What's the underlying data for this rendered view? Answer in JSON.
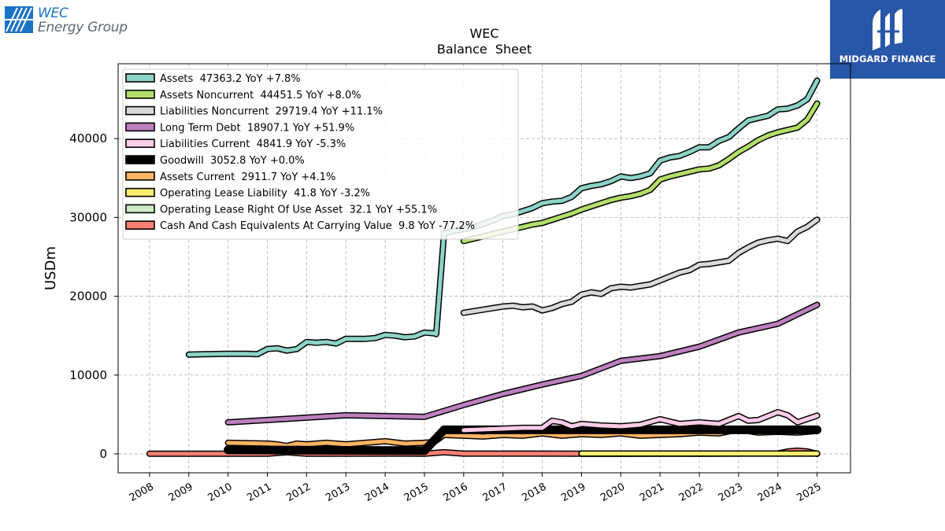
{
  "brand": {
    "left_logo_line1": "WEC",
    "left_logo_line2": "Energy Group",
    "right_logo_name": "MIDGARD FINANCE"
  },
  "chart_data": {
    "type": "line",
    "title": "WEC",
    "subtitle": "Balance  Sheet",
    "xlabel": "",
    "ylabel": "USDm",
    "xlim": [
      2007.2,
      2025.85
    ],
    "ylim": [
      -2400,
      49500
    ],
    "y_ticks": [
      0,
      10000,
      20000,
      30000,
      40000
    ],
    "x_ticks": [
      2008,
      2009,
      2010,
      2011,
      2012,
      2013,
      2014,
      2015,
      2016,
      2017,
      2018,
      2019,
      2020,
      2021,
      2022,
      2023,
      2024,
      2025
    ],
    "grid": true,
    "legend_position": "top-left",
    "series": [
      {
        "name": "Assets",
        "legend": "Assets  47363.2 YoY +7.8%",
        "color": "#8dd3c7",
        "x": [
          2009,
          2010,
          2010.5,
          2010.75,
          2011,
          2011.25,
          2011.5,
          2011.75,
          2012,
          2012.25,
          2012.5,
          2012.75,
          2013,
          2013.25,
          2013.5,
          2013.75,
          2014,
          2014.25,
          2014.5,
          2014.75,
          2015,
          2015.25,
          2015.3,
          2015.5,
          2015.75,
          2016,
          2016.25,
          2016.5,
          2016.75,
          2017,
          2017.25,
          2017.5,
          2017.75,
          2018,
          2018.25,
          2018.5,
          2018.75,
          2019,
          2019.25,
          2019.5,
          2019.75,
          2020,
          2020.25,
          2020.5,
          2020.75,
          2021,
          2021.25,
          2021.5,
          2021.75,
          2022,
          2022.25,
          2022.5,
          2022.75,
          2023,
          2023.25,
          2023.5,
          2023.75,
          2024,
          2024.25,
          2024.5,
          2024.75,
          2025
        ],
        "y": [
          12600,
          12700,
          12700,
          12650,
          13300,
          13400,
          13100,
          13300,
          14200,
          14100,
          14200,
          14000,
          14600,
          14600,
          14600,
          14700,
          15100,
          15000,
          14800,
          14900,
          15400,
          15300,
          15200,
          28000,
          28300,
          28500,
          28800,
          29200,
          29600,
          30200,
          30400,
          30800,
          31200,
          31800,
          32000,
          32100,
          32600,
          33700,
          34000,
          34200,
          34600,
          35200,
          35000,
          35200,
          35600,
          37200,
          37600,
          37800,
          38300,
          38900,
          38900,
          39700,
          40200,
          41300,
          42300,
          42600,
          42900,
          43700,
          43800,
          44200,
          45000,
          47363
        ]
      },
      {
        "name": "Assets Noncurrent",
        "legend": "Assets Noncurrent  44451.5 YoY +8.0%",
        "color": "#b3de69",
        "x": [
          2016,
          2016.25,
          2016.5,
          2016.75,
          2017,
          2017.25,
          2017.5,
          2017.75,
          2018,
          2018.25,
          2018.5,
          2018.75,
          2019,
          2019.25,
          2019.5,
          2019.75,
          2020,
          2020.25,
          2020.5,
          2020.75,
          2021,
          2021.25,
          2021.5,
          2021.75,
          2022,
          2022.25,
          2022.5,
          2022.75,
          2023,
          2023.25,
          2023.5,
          2023.75,
          2024,
          2024.25,
          2024.5,
          2024.75,
          2025
        ],
        "y": [
          27000,
          27300,
          27600,
          27900,
          28200,
          28500,
          28800,
          29100,
          29300,
          29700,
          30100,
          30500,
          31000,
          31400,
          31800,
          32200,
          32500,
          32700,
          33000,
          33500,
          34800,
          35200,
          35500,
          35800,
          36100,
          36200,
          36600,
          37400,
          38300,
          39000,
          39800,
          40400,
          40800,
          41100,
          41400,
          42400,
          44451
        ]
      },
      {
        "name": "Liabilities Noncurrent",
        "legend": "Liabilities Noncurrent  29719.4 YoY +11.1%",
        "color": "#d9d9d9",
        "x": [
          2016,
          2016.25,
          2016.5,
          2016.75,
          2017,
          2017.25,
          2017.5,
          2017.75,
          2018,
          2018.25,
          2018.5,
          2018.75,
          2019,
          2019.25,
          2019.5,
          2019.75,
          2020,
          2020.25,
          2020.5,
          2020.75,
          2021,
          2021.25,
          2021.5,
          2021.75,
          2022,
          2022.25,
          2022.5,
          2022.75,
          2023,
          2023.25,
          2023.5,
          2023.75,
          2024,
          2024.25,
          2024.5,
          2024.75,
          2025
        ],
        "y": [
          17900,
          18100,
          18300,
          18500,
          18700,
          18800,
          18600,
          18700,
          18200,
          18500,
          19000,
          19300,
          20200,
          20500,
          20300,
          21000,
          21200,
          21100,
          21300,
          21500,
          22000,
          22500,
          23000,
          23300,
          24000,
          24100,
          24300,
          24500,
          25500,
          26200,
          26800,
          27100,
          27300,
          27000,
          28200,
          28800,
          29719
        ]
      },
      {
        "name": "Long Term Debt",
        "legend": "Long Term Debt  18907.1 YoY +51.9%",
        "color": "#bc80bd",
        "x": [
          2010,
          2013,
          2015,
          2016,
          2017,
          2018,
          2019,
          2020,
          2021,
          2022,
          2023,
          2024,
          2025
        ],
        "y": [
          4000,
          4900,
          4700,
          6200,
          7600,
          8800,
          9900,
          11800,
          12400,
          13600,
          15400,
          16500,
          18907
        ]
      },
      {
        "name": "Liabilities Current",
        "legend": "Liabilities Current  4841.9 YoY -5.3%",
        "color": "#fccde5",
        "x": [
          2016,
          2016.5,
          2017,
          2017.5,
          2018,
          2018.25,
          2018.5,
          2018.75,
          2019,
          2019.5,
          2020,
          2020.5,
          2021,
          2021.5,
          2022,
          2022.5,
          2023,
          2023.25,
          2023.5,
          2024,
          2024.25,
          2024.5,
          2025
        ],
        "y": [
          3000,
          3100,
          3200,
          3300,
          3300,
          4200,
          4000,
          3500,
          3800,
          3600,
          3500,
          3700,
          4400,
          3800,
          4000,
          3800,
          4800,
          4200,
          4300,
          5300,
          4900,
          4000,
          4842
        ]
      },
      {
        "name": "Goodwill",
        "legend": "Goodwill  3052.8 YoY +0.0%",
        "color": "#000000",
        "x": [
          2010,
          2015,
          2015.5,
          2016,
          2025
        ],
        "y": [
          500,
          400,
          3050,
          3050,
          3053
        ]
      },
      {
        "name": "Assets Current",
        "legend": "Assets Current  2911.7 YoY +4.1%",
        "color": "#fdb462",
        "x": [
          2010,
          2011,
          2011.25,
          2011.5,
          2011.75,
          2012,
          2012.5,
          2013,
          2013.5,
          2014,
          2014.5,
          2015,
          2015.25,
          2015.5,
          2016,
          2016.5,
          2017,
          2017.5,
          2018,
          2018.5,
          2019,
          2019.5,
          2020,
          2020.5,
          2021,
          2021.5,
          2022,
          2022.5,
          2023,
          2023.5,
          2024,
          2024.5,
          2025
        ],
        "y": [
          1400,
          1300,
          1200,
          1000,
          1300,
          1200,
          1400,
          1200,
          1400,
          1600,
          1300,
          1400,
          1500,
          2400,
          2300,
          2200,
          2400,
          2300,
          2600,
          2300,
          2500,
          2400,
          2600,
          2300,
          2400,
          2500,
          2700,
          2600,
          3100,
          2700,
          2800,
          2700,
          2912
        ]
      },
      {
        "name": "Operating Lease Liability",
        "legend": "Operating Lease Liability  41.8 YoY -3.2%",
        "color": "#ffed6f",
        "x": [
          2019,
          2025
        ],
        "y": [
          45,
          42
        ]
      },
      {
        "name": "Operating Lease Right Of Use Asset",
        "legend": "Operating Lease Right Of Use Asset  32.1 YoY +55.1%",
        "color": "#ccebc5",
        "x": [
          2019,
          2025
        ],
        "y": [
          25,
          32
        ]
      },
      {
        "name": "Cash And Cash Equivalents At Carrying Value",
        "legend": "Cash And Cash Equivalents At Carrying Value  9.8 YoY -77.2%",
        "color": "#fb8072",
        "x": [
          2008,
          2011,
          2011.5,
          2012,
          2014,
          2015,
          2015.5,
          2016,
          2018,
          2019,
          2020,
          2021,
          2022,
          2023,
          2024,
          2024.25,
          2024.5,
          2024.75,
          2025
        ],
        "y": [
          20,
          30,
          200,
          20,
          40,
          30,
          200,
          40,
          40,
          30,
          30,
          40,
          30,
          50,
          50,
          300,
          400,
          300,
          10
        ]
      }
    ]
  }
}
